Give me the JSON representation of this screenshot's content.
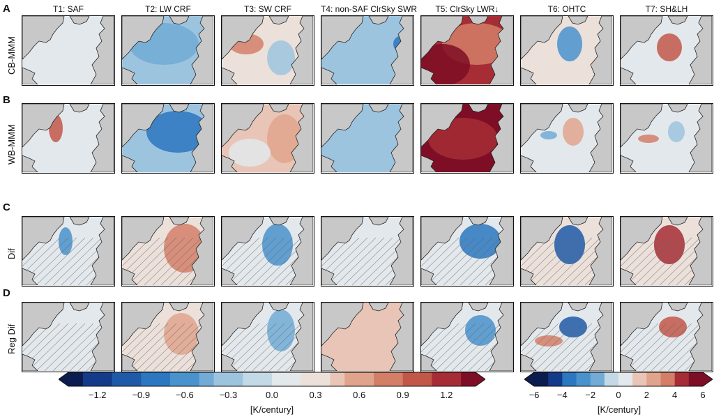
{
  "column_titles": [
    "T1: SAF",
    "T2: LW CRF",
    "T3: SW CRF",
    "T4: non-SAF ClrSky SWR",
    "T5: ClrSky LWR↓",
    "T6: OHTC",
    "T7: SH&LH"
  ],
  "rows": [
    {
      "letter": "A",
      "label": "CB-MMM"
    },
    {
      "letter": "B",
      "label": "WB-MMM"
    },
    {
      "letter": "C",
      "label": "Dif"
    },
    {
      "letter": "D",
      "label": "Reg Dif"
    }
  ],
  "colorbar_left": {
    "ticks": [
      "−1.2",
      "−0.9",
      "−0.6",
      "−0.3",
      "0.0",
      "0.3",
      "0.6",
      "0.9",
      "1.2"
    ],
    "unit": "[K/century]"
  },
  "colorbar_right": {
    "ticks": [
      "−6",
      "−4",
      "−2",
      "0",
      "2",
      "4",
      "6"
    ],
    "unit": "[K/century]"
  },
  "colors": {
    "land": "#c8c8c8",
    "neutral_ocean": "#e6e6e6",
    "palette": [
      "#0b1d4f",
      "#143a8a",
      "#1f5aa8",
      "#2b77c0",
      "#4a92cc",
      "#72acd6",
      "#9dc4df",
      "#c4d9e6",
      "#e3e8ec",
      "#ece0da",
      "#e8c5b6",
      "#e0a48d",
      "#d37f68",
      "#c25749",
      "#a62d35",
      "#7d0e25"
    ]
  }
}
